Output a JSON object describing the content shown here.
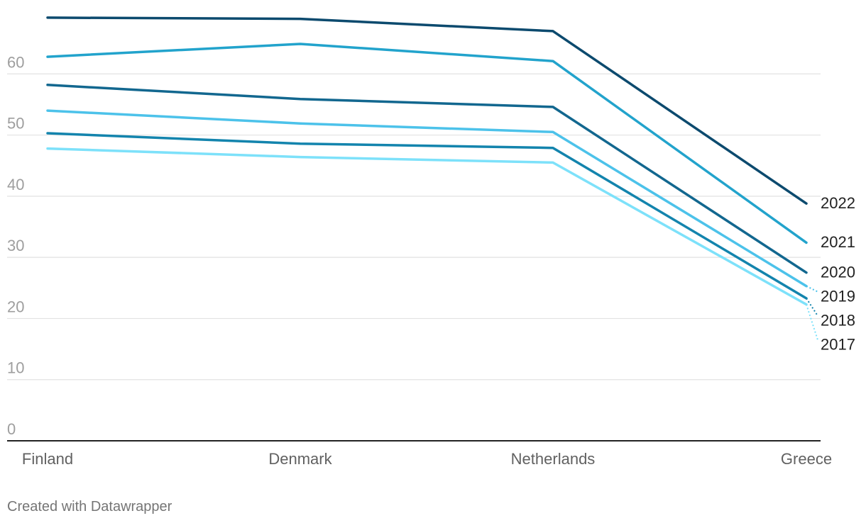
{
  "chart_data": {
    "type": "line",
    "categories": [
      "Finland",
      "Denmark",
      "Netherlands",
      "Greece"
    ],
    "ylim": [
      0,
      70
    ],
    "yticks": [
      0,
      10,
      20,
      30,
      40,
      50,
      60
    ],
    "grid": true,
    "legend": "direct labels right",
    "series": [
      {
        "name": "2022",
        "values": [
          69.2,
          69.0,
          67.0,
          38.8
        ],
        "color": "#0c4a6e"
      },
      {
        "name": "2021",
        "values": [
          62.8,
          64.9,
          62.1,
          32.4
        ],
        "color": "#22a3cc"
      },
      {
        "name": "2020",
        "values": [
          58.2,
          55.9,
          54.6,
          27.5
        ],
        "color": "#12678f"
      },
      {
        "name": "2019",
        "values": [
          54.0,
          51.9,
          50.5,
          25.3
        ],
        "color": "#4cc2ea"
      },
      {
        "name": "2018",
        "values": [
          50.3,
          48.6,
          47.9,
          23.3
        ],
        "color": "#1384ad"
      },
      {
        "name": "2017",
        "values": [
          47.8,
          46.4,
          45.5,
          22.3
        ],
        "color": "#7de1fa"
      }
    ]
  },
  "footer": {
    "credit": "Created with Datawrapper"
  }
}
